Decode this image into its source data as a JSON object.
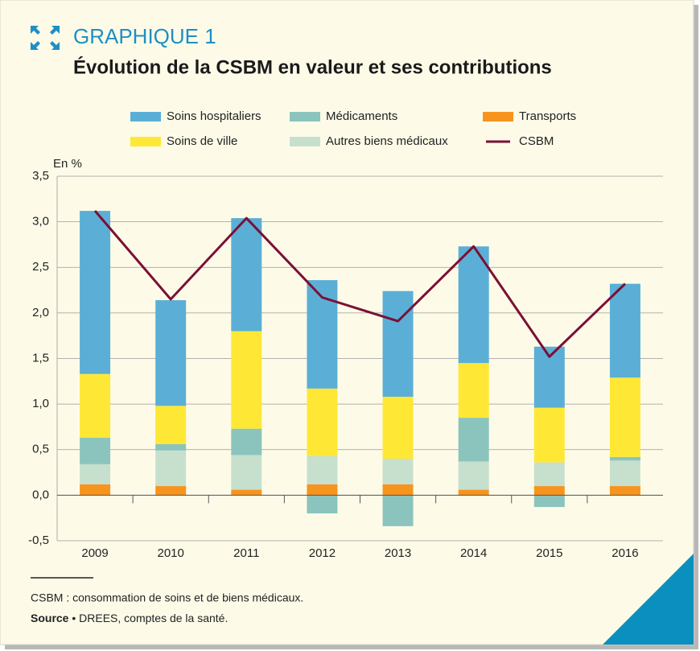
{
  "header": {
    "label": "GRAPHIQUE 1"
  },
  "chart_data": {
    "type": "stacked-bar-line",
    "title": "Évolution de la CSBM en valeur et ses contributions",
    "y_label": "En %",
    "categories": [
      "2009",
      "2010",
      "2011",
      "2012",
      "2013",
      "2014",
      "2015",
      "2016"
    ],
    "series": [
      {
        "name": "Transports",
        "color": "#f7941d",
        "values": [
          0.12,
          0.1,
          0.06,
          0.12,
          0.12,
          0.06,
          0.1,
          0.1
        ]
      },
      {
        "name": "Autres biens médicaux",
        "color": "#c6e0cd",
        "values": [
          0.22,
          0.39,
          0.38,
          0.31,
          0.28,
          0.31,
          0.26,
          0.28
        ]
      },
      {
        "name": "Médicaments",
        "color": "#8bc4bd",
        "values": [
          0.29,
          0.07,
          0.29,
          -0.2,
          -0.34,
          0.48,
          -0.13,
          0.04
        ]
      },
      {
        "name": "Soins de ville",
        "color": "#ffe835",
        "values": [
          0.7,
          0.42,
          1.07,
          0.74,
          0.68,
          0.6,
          0.6,
          0.87
        ]
      },
      {
        "name": "Soins hospitaliers",
        "color": "#5bafd6",
        "values": [
          1.79,
          1.16,
          1.24,
          1.19,
          1.16,
          1.28,
          0.67,
          1.03
        ]
      },
      {
        "name": "CSBM",
        "color": "#7b1035",
        "type": "line",
        "values": [
          3.12,
          2.15,
          3.04,
          2.17,
          1.91,
          2.73,
          1.52,
          2.32
        ]
      }
    ],
    "ylim": [
      -0.5,
      3.5
    ],
    "yticks": [
      {
        "value": -0.5,
        "label": "-0,5"
      },
      {
        "value": 0,
        "label": "0,0"
      },
      {
        "value": 0.5,
        "label": "0,5"
      },
      {
        "value": 1,
        "label": "1,0"
      },
      {
        "value": 1.5,
        "label": "1,5"
      },
      {
        "value": 2,
        "label": "2,0"
      },
      {
        "value": 2.5,
        "label": "2,5"
      },
      {
        "value": 3,
        "label": "3,0"
      },
      {
        "value": 3.5,
        "label": "3,5"
      }
    ],
    "grid": true
  },
  "footer": {
    "note": "CSBM : consommation de soins et de biens médicaux.",
    "source_label": "Source",
    "source_text": "• DREES, comptes de la santé."
  }
}
